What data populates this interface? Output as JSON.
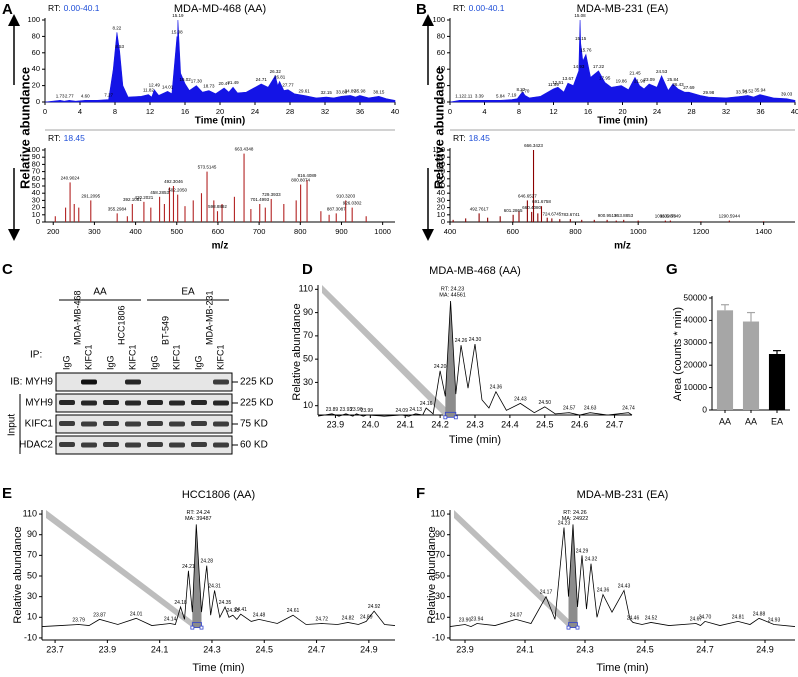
{
  "chart_data": [
    {
      "type": "chromatogram",
      "panel": "A",
      "title": "MDA-MD-468 (AA)",
      "rt_label": "RT:",
      "rt": "0.00-40.1",
      "xlabel": "Time (min)",
      "ylabel": "Relative abundance",
      "color": "#1414e6",
      "x": [
        0,
        1.73,
        2.2,
        2.77,
        3.5,
        4.6,
        6,
        7.27,
        7.8,
        8.22,
        8.53,
        8.9,
        9.5,
        11,
        11.82,
        12.2,
        12.49,
        13,
        14.01,
        14.5,
        15.08,
        15.12,
        15.19,
        15.5,
        16.02,
        16.5,
        17.3,
        18,
        18.73,
        19.5,
        20.47,
        21,
        21.49,
        22,
        23,
        24.71,
        25.5,
        26.32,
        26.6,
        26.81,
        27.3,
        27.77,
        28.5,
        29.61,
        31,
        32.15,
        33,
        33.88,
        34.89,
        35.5,
        35.98,
        37,
        38.15,
        39,
        40
      ],
      "values": [
        0,
        2,
        1,
        2,
        1,
        2,
        2,
        3,
        40,
        85,
        62,
        20,
        6,
        7,
        9,
        6,
        15,
        8,
        13,
        10,
        80,
        60,
        100,
        35,
        22,
        14,
        20,
        12,
        14,
        10,
        17,
        12,
        18,
        11,
        12,
        22,
        18,
        32,
        20,
        25,
        14,
        15,
        10,
        8,
        5,
        6,
        5,
        7,
        8,
        6,
        8,
        5,
        7,
        4,
        2
      ],
      "peak_labels": [
        "1.73",
        "2.77",
        "4.60",
        "7.27",
        "8.22",
        "8.53",
        "11.82",
        "12.49",
        "14.01",
        "15.19",
        "15.08",
        "16.02",
        "17.30",
        "18.73",
        "20.47",
        "21.49",
        "24.71",
        "26.32",
        "26.81",
        "27.77",
        "29.61",
        "32.15",
        "33.88",
        "34.89",
        "35.98",
        "38.15"
      ],
      "xlim": [
        0,
        40
      ],
      "xticks": [
        0,
        4,
        8,
        12,
        16,
        20,
        24,
        28,
        32,
        36,
        40
      ],
      "ylim": [
        0,
        100
      ],
      "yticks": [
        0,
        20,
        40,
        60,
        80,
        100
      ]
    },
    {
      "type": "spectrum",
      "rt_label": "RT:",
      "rt": "18.45",
      "xlabel": "m/z",
      "color": "#b22222",
      "x": [
        205,
        230,
        240.9,
        251,
        262,
        291.2,
        355.3,
        380,
        392.1,
        420.2,
        437,
        458.3,
        470,
        482.3,
        492,
        502.2,
        520,
        540,
        560,
        573.5,
        590,
        598.9,
        610,
        640,
        663.4,
        680,
        701.5,
        715,
        729.4,
        760,
        790,
        800.8,
        816.4,
        850,
        870,
        887.3,
        910.3,
        926,
        960
      ],
      "values": [
        8,
        20,
        55,
        25,
        20,
        30,
        12,
        8,
        25,
        28,
        20,
        35,
        25,
        48,
        50,
        38,
        22,
        30,
        40,
        70,
        30,
        15,
        25,
        35,
        95,
        18,
        25,
        20,
        32,
        25,
        30,
        52,
        58,
        15,
        10,
        12,
        30,
        20,
        8
      ],
      "peak_labels": [
        "240.9024",
        "291.2095",
        "392.1081",
        "355.2984",
        "420.2021",
        "458.2853",
        "492.3046",
        "502.2050",
        "573.5145",
        "598.8892",
        "663.4348",
        "701.4993",
        "729.3933",
        "800.8074",
        "816.4089",
        "887.3087",
        "910.3203",
        "926.0302"
      ],
      "xlim": [
        180,
        1030
      ],
      "xticks": [
        200,
        300,
        400,
        500,
        600,
        700,
        800,
        900,
        1000
      ],
      "ylim": [
        0,
        100
      ],
      "yticks": [
        0,
        10,
        20,
        30,
        40,
        50,
        60,
        70,
        80,
        90,
        100
      ]
    },
    {
      "type": "chromatogram",
      "panel": "B",
      "title": "MDA-MB-231 (EA)",
      "rt_label": "RT:",
      "rt": "0.00-40.1",
      "xlabel": "Time (min)",
      "ylabel": "Relative abundance",
      "color": "#1414e6",
      "x": [
        0,
        1.12,
        2.11,
        3.39,
        5.84,
        7.19,
        7.8,
        8.22,
        8.45,
        8.7,
        9.2,
        10.5,
        11.99,
        12.51,
        13.2,
        13.67,
        14.3,
        14.93,
        15.08,
        15.15,
        15.4,
        15.76,
        16.3,
        17.22,
        17.95,
        18.7,
        19.86,
        20.7,
        21.45,
        21.98,
        22.5,
        23.09,
        24,
        24.53,
        25.3,
        25.84,
        26.43,
        27.2,
        27.69,
        29,
        29.98,
        32,
        33.78,
        34.52,
        35.2,
        35.94,
        37.5,
        39.03,
        40
      ],
      "values": [
        0,
        2,
        2,
        2,
        2,
        3,
        4,
        10,
        12,
        8,
        5,
        7,
        16,
        18,
        12,
        23,
        20,
        38,
        100,
        72,
        50,
        58,
        30,
        38,
        24,
        18,
        20,
        15,
        30,
        20,
        16,
        22,
        18,
        32,
        14,
        22,
        16,
        12,
        12,
        8,
        6,
        5,
        7,
        8,
        6,
        9,
        5,
        4,
        2
      ],
      "peak_labels": [
        "1.12",
        "2.11",
        "3.39",
        "5.84",
        "7.19",
        "8.22",
        "8.70",
        "11.99",
        "12.51",
        "13.67",
        "14.93",
        "15.08",
        "15.15",
        "15.76",
        "17.22",
        "17.95",
        "19.86",
        "21.45",
        "21.98",
        "23.09",
        "24.53",
        "25.84",
        "26.43",
        "27.69",
        "29.98",
        "33.78",
        "34.52",
        "35.94",
        "39.03"
      ],
      "xlim": [
        0,
        40
      ],
      "xticks": [
        0,
        4,
        8,
        12,
        16,
        20,
        24,
        28,
        32,
        36,
        40
      ],
      "ylim": [
        0,
        100
      ],
      "yticks": [
        0,
        20,
        40,
        60,
        80,
        100
      ]
    },
    {
      "type": "spectrum",
      "rt_label": "RT:",
      "rt": "18.45",
      "xlabel": "m/z",
      "color": "#8b0000",
      "x": [
        410,
        450,
        492.8,
        520,
        560,
        601.3,
        620,
        646.7,
        660.4,
        666.3,
        680,
        691.7,
        710,
        724.7,
        750,
        783.7,
        820,
        860,
        900.95,
        930,
        953.9,
        1000,
        1086.6,
        1102.6,
        1200,
        1290.6,
        1400
      ],
      "values": [
        3,
        5,
        12,
        6,
        8,
        10,
        15,
        30,
        14,
        100,
        12,
        22,
        6,
        5,
        4,
        4,
        3,
        3,
        3,
        2,
        3,
        2,
        2,
        2,
        1,
        2,
        1
      ],
      "peak_labels": [
        "492.7617",
        "601.2865",
        "646.6527",
        "660.4080",
        "666.3423",
        "691.6758",
        "724.6745",
        "783.6741",
        "900.9513",
        "953.8853",
        "1086.6474",
        "1102.5549",
        "1290.5944"
      ],
      "xlim": [
        400,
        1500
      ],
      "xticks": [
        400,
        600,
        800,
        1000,
        1200,
        1400
      ],
      "ylim": [
        0,
        100
      ],
      "yticks": [
        0,
        10,
        20,
        30,
        40,
        50,
        60,
        70,
        80,
        90,
        100
      ]
    },
    {
      "type": "peak",
      "panel": "D",
      "title": "MDA-MB-468 (AA)",
      "xlabel": "Time (min)",
      "ylabel": "Relative abundance",
      "color": "#000000",
      "annotation": [
        "RT: 24.23",
        "MA: 44561"
      ],
      "x": [
        23.85,
        23.89,
        23.91,
        23.93,
        23.95,
        23.96,
        23.98,
        23.99,
        24.04,
        24.09,
        24.11,
        24.13,
        24.15,
        24.16,
        24.18,
        24.2,
        24.215,
        24.23,
        24.245,
        24.26,
        24.28,
        24.3,
        24.32,
        24.34,
        24.36,
        24.39,
        24.43,
        24.47,
        24.5,
        24.53,
        24.57,
        24.6,
        24.63,
        24.68,
        24.74,
        24.75
      ],
      "values": [
        1,
        3,
        1,
        3,
        1,
        3,
        1,
        2,
        1,
        2,
        1,
        3,
        2,
        8,
        3,
        40,
        18,
        100,
        20,
        62,
        25,
        63,
        15,
        8,
        22,
        6,
        12,
        4,
        9,
        3,
        4,
        2,
        4,
        2,
        4,
        2
      ],
      "peak_labels": [
        "23.89",
        "23.93",
        "23.96",
        "23.99",
        "24.09",
        "24.13",
        "24.16",
        "24.20",
        "24.26",
        "24.30",
        "24.36",
        "24.43",
        "24.50",
        "24.57",
        "24.63",
        "24.74"
      ],
      "xlim": [
        23.85,
        24.75
      ],
      "xticks": [
        23.9,
        {
          "value": 24,
          "label": "24.0"
        },
        24.1,
        24.2,
        24.3,
        24.4,
        24.5,
        24.6,
        24.7
      ],
      "ylim": [
        2,
        112
      ],
      "yticks": [
        10,
        30,
        50,
        70,
        90,
        110
      ]
    },
    {
      "type": "peak",
      "panel": "E",
      "title": "HCC1806 (AA)",
      "xlabel": "Time (min)",
      "ylabel": "Relative abundance",
      "color": "#000000",
      "annotation": [
        "RT: 24.24",
        "MA: 39487"
      ],
      "x": [
        23.65,
        23.72,
        23.79,
        23.83,
        23.87,
        23.94,
        24.01,
        24.07,
        24.14,
        24.16,
        24.18,
        24.195,
        24.21,
        24.225,
        24.24,
        24.26,
        24.28,
        24.295,
        24.31,
        24.33,
        24.35,
        24.365,
        24.38,
        24.395,
        24.41,
        24.45,
        24.48,
        24.55,
        24.61,
        24.66,
        24.72,
        24.78,
        24.82,
        24.86,
        24.89,
        24.92,
        24.96,
        25.0
      ],
      "values": [
        1,
        2,
        3,
        2,
        8,
        3,
        9,
        2,
        4,
        3,
        20,
        8,
        55,
        15,
        100,
        15,
        60,
        12,
        36,
        10,
        20,
        10,
        12,
        8,
        13,
        6,
        8,
        4,
        12,
        3,
        4,
        3,
        5,
        3,
        6,
        16,
        3,
        2
      ],
      "peak_labels": [
        "23.79",
        "23.87",
        "24.01",
        "24.14",
        "24.18",
        "24.21",
        "24.28",
        "24.31",
        "24.35",
        "24.38",
        "24.41",
        "24.48",
        "24.61",
        "24.72",
        "24.82",
        "24.89",
        "24.92"
      ],
      "xlim": [
        23.65,
        25.0
      ],
      "xticks": [
        23.7,
        23.9,
        24.1,
        24.3,
        24.5,
        24.7,
        24.9
      ],
      "ylim": [
        -12,
        112
      ],
      "yticks": [
        -10,
        10,
        30,
        50,
        70,
        90,
        110
      ]
    },
    {
      "type": "peak",
      "panel": "F",
      "title": "MDA-MB-231 (EA)",
      "xlabel": "Time (min)",
      "ylabel": "Relative abundance",
      "color": "#000000",
      "annotation": [
        "RT: 24.26",
        "MA: 24922"
      ],
      "x": [
        23.85,
        23.9,
        23.92,
        23.94,
        24.0,
        24.07,
        24.12,
        24.17,
        24.2,
        24.23,
        24.245,
        24.26,
        24.275,
        24.29,
        24.305,
        24.32,
        24.34,
        24.36,
        24.39,
        24.43,
        24.45,
        24.46,
        24.49,
        24.52,
        24.58,
        24.67,
        24.685,
        24.7,
        24.75,
        24.81,
        24.85,
        24.88,
        24.93,
        25.0
      ],
      "values": [
        1,
        3,
        1,
        4,
        2,
        8,
        4,
        30,
        8,
        97,
        30,
        100,
        20,
        70,
        18,
        62,
        10,
        32,
        15,
        36,
        8,
        5,
        3,
        5,
        2,
        4,
        2,
        6,
        2,
        6,
        3,
        9,
        3,
        1
      ],
      "peak_labels": [
        "23.90",
        "23.94",
        "24.07",
        "24.17",
        "24.23",
        "24.29",
        "24.32",
        "24.36",
        "24.43",
        "24.46",
        "24.52",
        "24.67",
        "24.70",
        "24.81",
        "24.88",
        "24.93"
      ],
      "xlim": [
        23.85,
        25.0
      ],
      "xticks": [
        23.9,
        24.1,
        24.3,
        24.5,
        24.7,
        24.9
      ],
      "ylim": [
        -12,
        112
      ],
      "yticks": [
        -10,
        10,
        30,
        50,
        70,
        90,
        110
      ]
    },
    {
      "type": "bar",
      "panel": "G",
      "ylabel": "Area (counts * min)",
      "categories": [
        "AA",
        "AA",
        "EA"
      ],
      "values": [
        44500,
        39500,
        25000
      ],
      "errors": [
        2500,
        4000,
        1500
      ],
      "colors": [
        "#a6a6a6",
        "#a6a6a6",
        "#000000"
      ],
      "ylim": [
        0,
        50000
      ],
      "yticks": [
        0,
        10000,
        20000,
        30000,
        40000,
        50000
      ]
    }
  ],
  "blot": {
    "panel": "C",
    "groups": [
      "AA",
      "EA"
    ],
    "cell_lines": [
      "MDA-MB-468",
      "HCC1806",
      "BT-549",
      "MDA-MB-231"
    ],
    "ip_label": "IP:",
    "lanes": [
      "IgG",
      "KIFC1",
      "IgG",
      "KIFC1",
      "IgG",
      "KIFC1",
      "IgG",
      "KIFC1"
    ],
    "rows": [
      {
        "label": "IB: MYH9",
        "size": "225 KD"
      },
      {
        "label": "MYH9",
        "size": "225 KD"
      },
      {
        "label": "KIFC1",
        "size": "75 KD"
      },
      {
        "label": "HDAC2",
        "size": "60 KD"
      }
    ],
    "input_label": "Input"
  }
}
